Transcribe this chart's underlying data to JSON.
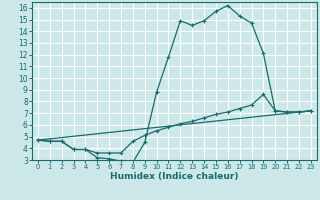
{
  "xlabel": "Humidex (Indice chaleur)",
  "bg_color": "#cce8e8",
  "grid_color": "#ffffff",
  "line_color": "#1a6b6b",
  "xlim": [
    -0.5,
    23.5
  ],
  "ylim": [
    3,
    16.5
  ],
  "xticks": [
    0,
    1,
    2,
    3,
    4,
    5,
    6,
    7,
    8,
    9,
    10,
    11,
    12,
    13,
    14,
    15,
    16,
    17,
    18,
    19,
    20,
    21,
    22,
    23
  ],
  "yticks": [
    3,
    4,
    5,
    6,
    7,
    8,
    9,
    10,
    11,
    12,
    13,
    14,
    15,
    16
  ],
  "line1_x": [
    0,
    1,
    2,
    3,
    4,
    5,
    6,
    7,
    8,
    9,
    10,
    11,
    12,
    13,
    14,
    15,
    16,
    17,
    18,
    19,
    20,
    21,
    22,
    23
  ],
  "line1_y": [
    4.7,
    4.6,
    4.6,
    3.9,
    3.9,
    3.2,
    3.1,
    2.9,
    2.8,
    4.5,
    8.8,
    11.8,
    14.9,
    14.5,
    14.9,
    15.7,
    16.2,
    15.3,
    14.7,
    12.1,
    7.2,
    7.1,
    7.1,
    7.2
  ],
  "line2_x": [
    0,
    1,
    2,
    3,
    4,
    5,
    6,
    7,
    8,
    9,
    10,
    11,
    12,
    13,
    14,
    15,
    16,
    17,
    18,
    19,
    20,
    21,
    22,
    23
  ],
  "line2_y": [
    4.7,
    4.6,
    4.6,
    3.9,
    3.9,
    3.6,
    3.6,
    3.6,
    4.6,
    5.1,
    5.5,
    5.8,
    6.1,
    6.3,
    6.6,
    6.9,
    7.1,
    7.4,
    7.7,
    8.6,
    7.2,
    7.1,
    7.1,
    7.2
  ],
  "line3_x": [
    0,
    23
  ],
  "line3_y": [
    4.7,
    7.2
  ],
  "tick_fontsize": 5.5,
  "xlabel_fontsize": 6.5
}
